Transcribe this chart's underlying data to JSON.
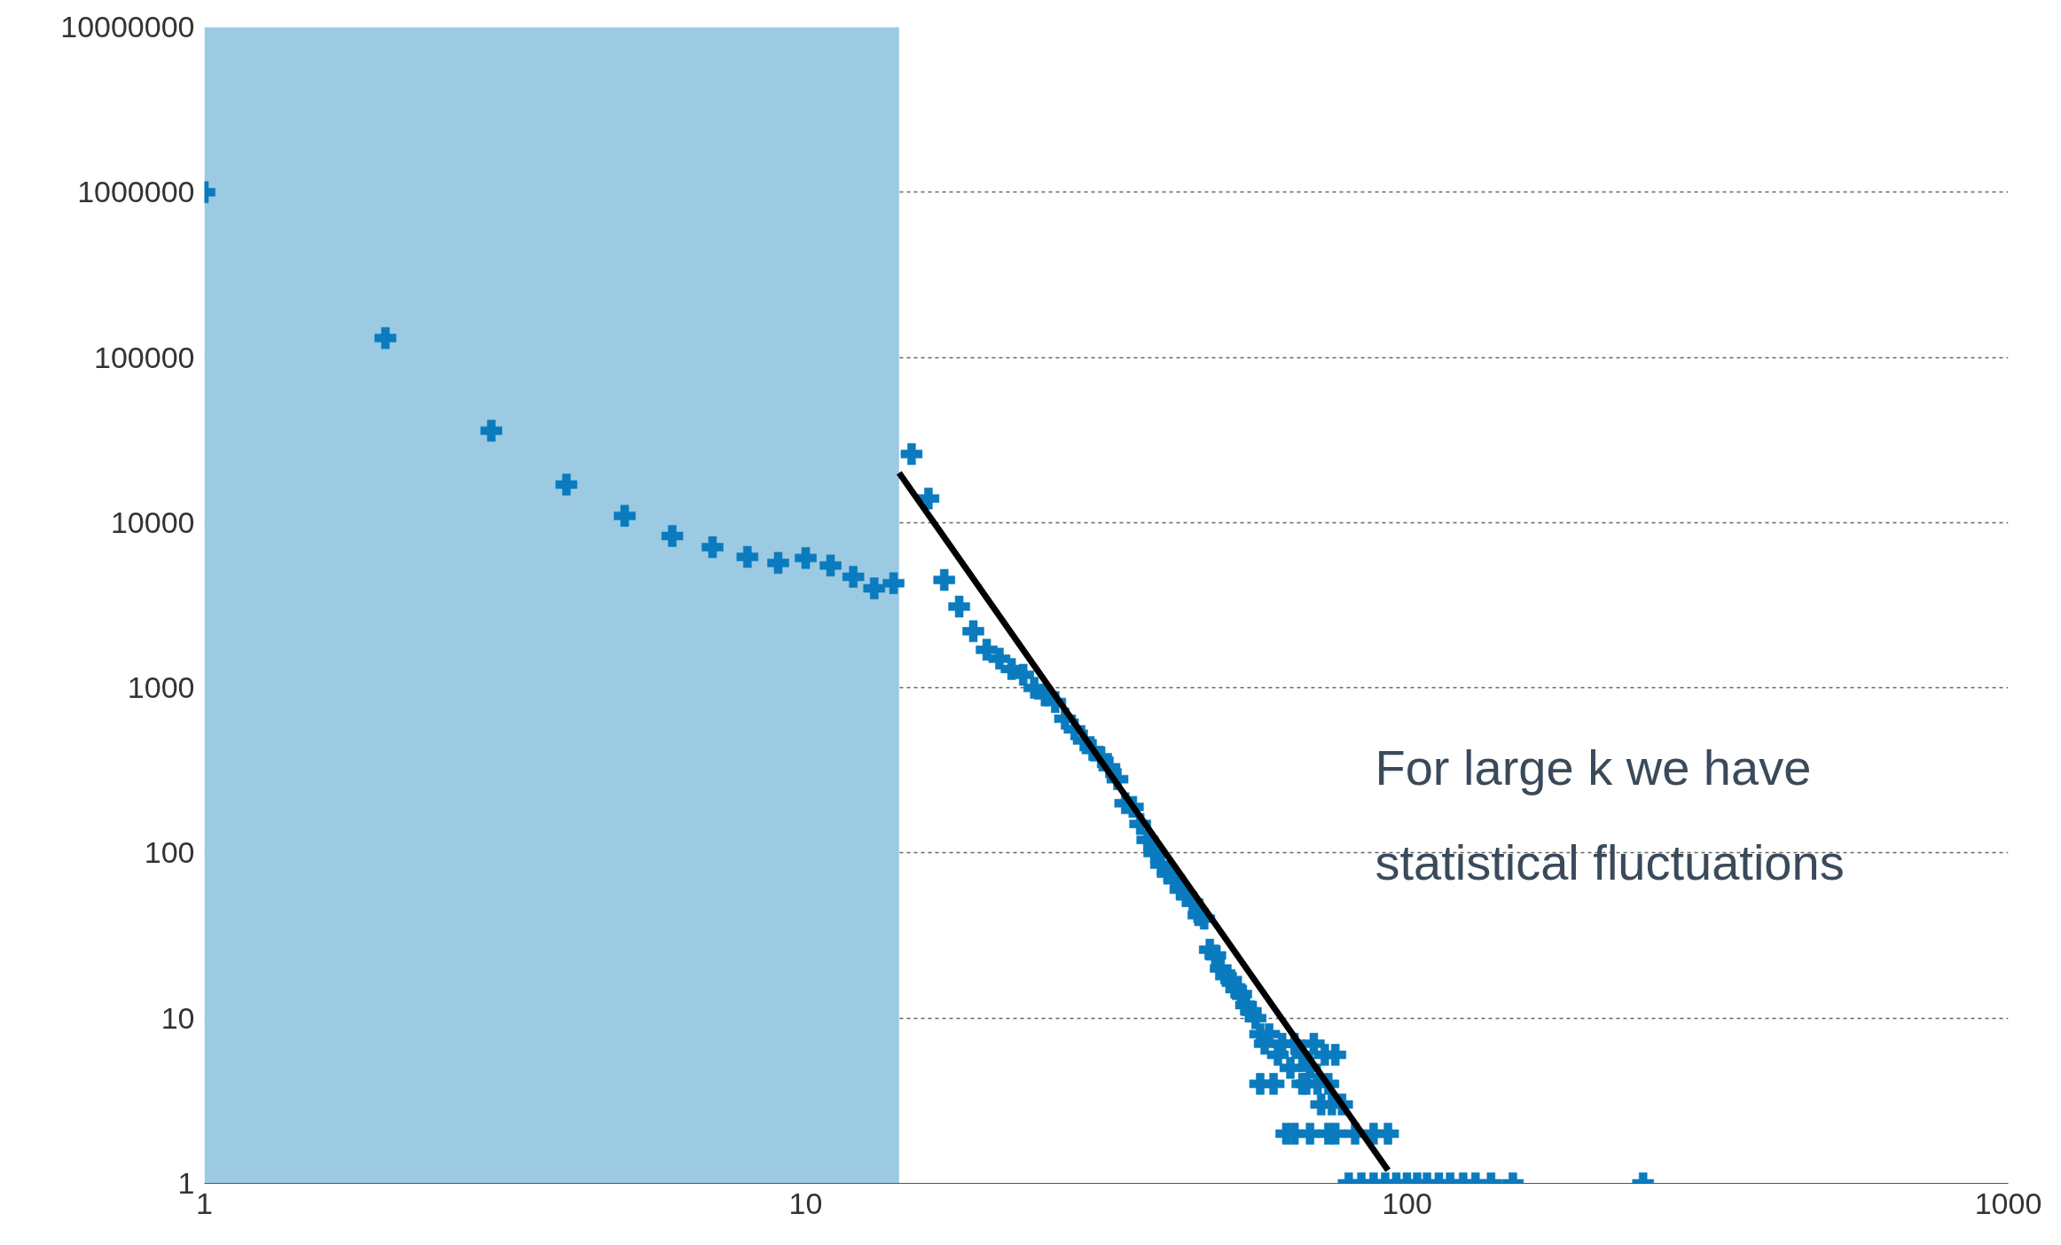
{
  "chart_data": {
    "type": "scatter",
    "log": "xy",
    "grid": "y",
    "marker": "cross",
    "xlim": [
      1,
      1000
    ],
    "ylim": [
      1,
      10000000
    ],
    "xticks": [
      1,
      10,
      100,
      1000
    ],
    "yticks": [
      1,
      10,
      100,
      1000,
      10000,
      100000,
      1000000,
      10000000
    ],
    "bands": [
      {
        "axis": "x",
        "from": 1,
        "to": 14.3,
        "color": "#9ccae3"
      }
    ],
    "annotations": [
      "For large k we have\nstatistical fluctuations"
    ],
    "series": [
      {
        "color": "#0a7bbf",
        "x": [
          1,
          2,
          3,
          4,
          5,
          6,
          7,
          8,
          9,
          10,
          11,
          12,
          13,
          14,
          15,
          16,
          17,
          18,
          19,
          20,
          21,
          22,
          23,
          24,
          25,
          26,
          27,
          28,
          29,
          30,
          31,
          32,
          33,
          34,
          35,
          36,
          37,
          38,
          39,
          40,
          41,
          42,
          43,
          44,
          45,
          46,
          47,
          48,
          49,
          50,
          51,
          52,
          53,
          54,
          55,
          56,
          57,
          58,
          59,
          61,
          62,
          64,
          65,
          67,
          68,
          69,
          70,
          71,
          72,
          73,
          74,
          75,
          76,
          78,
          57,
          60,
          67,
          63,
          65,
          69,
          74,
          76,
          82,
          88,
          93,
          80,
          84,
          88,
          92,
          96,
          100,
          104,
          108,
          113,
          118,
          124,
          130,
          138,
          150,
          247
        ],
        "values": [
          1000000,
          131000,
          36000,
          17000,
          11000,
          8300,
          7100,
          6200,
          5700,
          6100,
          5500,
          4700,
          4000,
          4300,
          26000,
          14000,
          4500,
          3100,
          2200,
          1700,
          1500,
          1300,
          1200,
          1000,
          900,
          820,
          650,
          560,
          480,
          420,
          380,
          330,
          280,
          200,
          190,
          150,
          120,
          100,
          85,
          75,
          70,
          60,
          55,
          50,
          42,
          40,
          26,
          24,
          20,
          18,
          17,
          15,
          14,
          12,
          11,
          10,
          8,
          7,
          8,
          6,
          7,
          5,
          7,
          6,
          4,
          5,
          7,
          4,
          3,
          6,
          4,
          3,
          6,
          3,
          4,
          4,
          4,
          2,
          2,
          2,
          2,
          2,
          2,
          2,
          2,
          1,
          1,
          1,
          1,
          1,
          1,
          1,
          1,
          1,
          1,
          1,
          1,
          1,
          1,
          1
        ]
      },
      {
        "type": "line",
        "marker": "none",
        "color": "#000000",
        "x": [
          14.3,
          93
        ],
        "values": [
          20000,
          1.2
        ]
      }
    ]
  }
}
